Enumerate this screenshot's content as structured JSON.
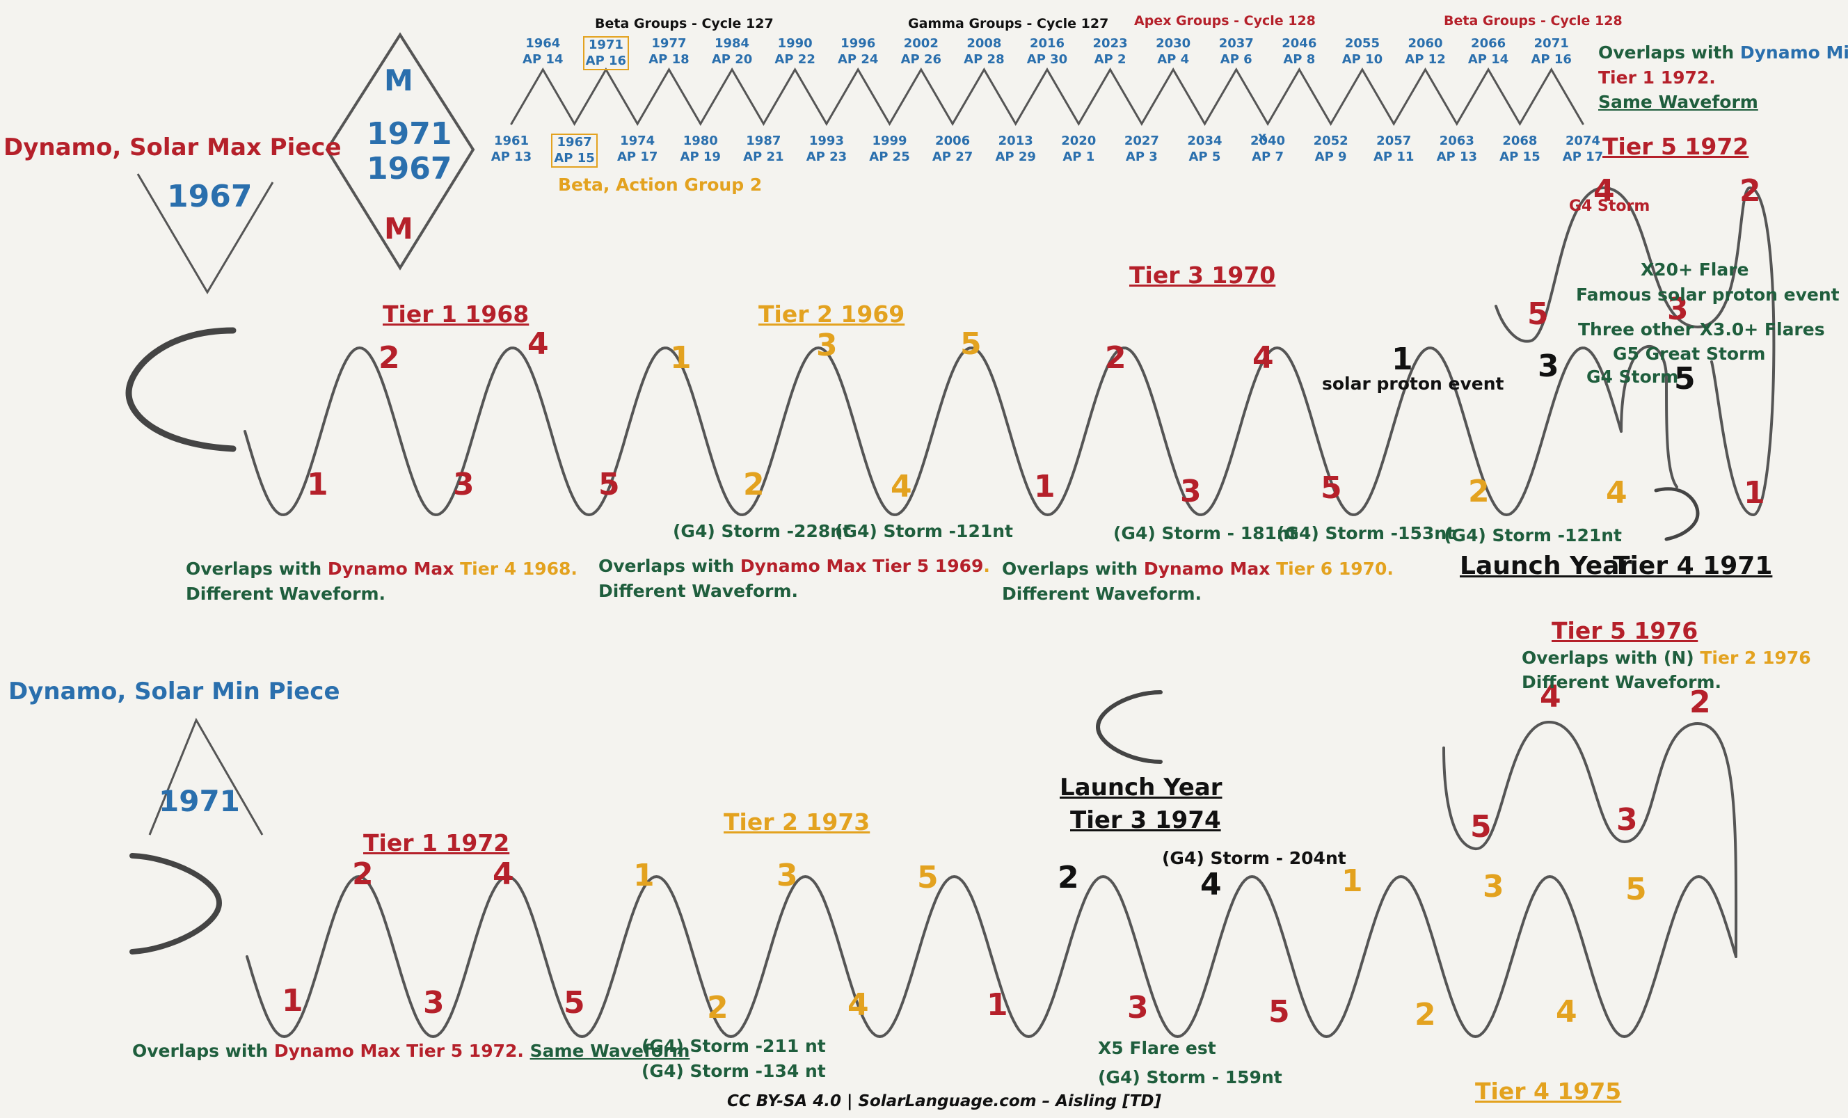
{
  "strip": {
    "groups": [
      {
        "label": "Beta Groups - Cycle 127",
        "color": "#111111"
      },
      {
        "label": "Gamma Groups - Cycle 127",
        "color": "#111111"
      },
      {
        "label": "Apex Groups - Cycle 128",
        "color": "#b5202a"
      },
      {
        "label": "Beta Groups - Cycle 128",
        "color": "#b5202a"
      }
    ],
    "peaks": [
      {
        "year": "1964",
        "ap": "AP 14"
      },
      {
        "year": "1971",
        "ap": "AP 16"
      },
      {
        "year": "1977",
        "ap": "AP 18"
      },
      {
        "year": "1984",
        "ap": "AP 20"
      },
      {
        "year": "1990",
        "ap": "AP 22"
      },
      {
        "year": "1996",
        "ap": "AP 24"
      },
      {
        "year": "2002",
        "ap": "AP 26"
      },
      {
        "year": "2008",
        "ap": "AP 28"
      },
      {
        "year": "2016",
        "ap": "AP 30"
      },
      {
        "year": "2023",
        "ap": "AP 2"
      },
      {
        "year": "2030",
        "ap": "AP 4"
      },
      {
        "year": "2037",
        "ap": "AP 6"
      },
      {
        "year": "2046",
        "ap": "AP 8"
      },
      {
        "year": "2055",
        "ap": "AP 10"
      },
      {
        "year": "2060",
        "ap": "AP 12"
      },
      {
        "year": "2066",
        "ap": "AP 14"
      },
      {
        "year": "2071",
        "ap": "AP 16"
      }
    ],
    "troughs": [
      {
        "year": "1961",
        "ap": "AP 13"
      },
      {
        "year": "1967",
        "ap": "AP 15"
      },
      {
        "year": "1974",
        "ap": "AP 17"
      },
      {
        "year": "1980",
        "ap": "AP 19"
      },
      {
        "year": "1987",
        "ap": "AP 21"
      },
      {
        "year": "1993",
        "ap": "AP 23"
      },
      {
        "year": "1999",
        "ap": "AP 25"
      },
      {
        "year": "2006",
        "ap": "AP 27"
      },
      {
        "year": "2013",
        "ap": "AP 29"
      },
      {
        "year": "2020",
        "ap": "AP 1"
      },
      {
        "year": "2027",
        "ap": "AP 3"
      },
      {
        "year": "2034",
        "ap": "AP 5"
      },
      {
        "year": "2040",
        "ap": "AP 7"
      },
      {
        "year": "2052",
        "ap": "AP 9"
      },
      {
        "year": "2057",
        "ap": "AP 11"
      },
      {
        "year": "2063",
        "ap": "AP 13"
      },
      {
        "year": "2068",
        "ap": "AP 15"
      },
      {
        "year": "2074",
        "ap": "AP 17"
      }
    ],
    "x_mark": "x",
    "beta_action": "Beta, Action Group 2",
    "overlap_min": {
      "pre": "Overlaps with ",
      "dynamo": "Dynamo Min",
      "tier": "Tier 1 1972.",
      "wave": "Same Waveform"
    }
  },
  "diamond": {
    "top": "M",
    "years": [
      "1971",
      "1967"
    ],
    "bottom": "M"
  },
  "max_piece": {
    "title": "Dynamo, Solar Max Piece",
    "v_year": "1967",
    "tiers": {
      "t1": "Tier 1 1968",
      "t2": "Tier 2 1969",
      "t3": "Tier 3 1970",
      "t4": "Tier 4 1971",
      "t5": "Tier 5 1972"
    },
    "launch": "Launch Year",
    "wave_numbers": [
      "1",
      "2",
      "3",
      "4",
      "5",
      "1",
      "2",
      "3",
      "4",
      "5",
      "1",
      "2",
      "3",
      "4",
      "5",
      "1",
      "2",
      "3",
      "4",
      "5"
    ],
    "loop_numbers": [
      "5",
      "4",
      "3",
      "2",
      "1"
    ],
    "storms": [
      "(G4) Storm -228nt",
      "(G4) Storm -121nt",
      "(G4) Storm - 181nt",
      "(G4) Storm -153nt",
      "(G4) Storm -121nt",
      "G4 Storm"
    ],
    "events": {
      "proton1": "solar proton event",
      "g4storm": "G4 Storm",
      "x20": "X20+ Flare",
      "famous": "Famous solar proton event",
      "x3": "Three other X3.0+ Flares",
      "g5": "G5 Great Storm"
    },
    "overlaps": [
      {
        "pre": "Overlaps with ",
        "dynamo": "Dynamo Max",
        "tier": " Tier 4 1968.",
        "wave": "Different Waveform."
      },
      {
        "pre": "Overlaps with ",
        "dynamo": "Dynamo Max Tier 5 1969",
        "tier": ".",
        "wave": "Different Waveform."
      },
      {
        "pre": "Overlaps with ",
        "dynamo": "Dynamo Max",
        "tier": " Tier 6 1970.",
        "wave": "Different Waveform."
      }
    ]
  },
  "min_piece": {
    "title": "Dynamo, Solar Min Piece",
    "v_year": "1971",
    "tiers": {
      "t1": "Tier 1 1972",
      "t2": "Tier 2 1973",
      "t3": "Tier 3 1974",
      "t4": "Tier 4 1975",
      "t5": "Tier 5 1976"
    },
    "launch": "Launch Year",
    "wave_numbers": [
      "1",
      "2",
      "3",
      "4",
      "5",
      "1",
      "2",
      "3",
      "4",
      "5",
      "1",
      "2",
      "3",
      "4",
      "5",
      "1",
      "2",
      "3",
      "4",
      "5"
    ],
    "loop_numbers": [
      "5",
      "4",
      "3",
      "2"
    ],
    "storms": [
      "(G4) Storm -211 nt",
      "(G4) Storm -134 nt",
      "(G4) Storm - 204nt",
      "(G4) Storm - 159nt"
    ],
    "x5": "X5 Flare est",
    "overlap1": {
      "pre": "Overlaps with ",
      "dynamo": "Dynamo Max Tier 5 1972.",
      "wave": "Same Waveform"
    },
    "overlap2": {
      "pre": "Overlaps with (N) ",
      "tier": "Tier 2 1976",
      "wave": "Different Waveform."
    }
  },
  "footer": "CC BY-SA 4.0 | SolarLanguage.com – Aisling [TD]",
  "colors": {
    "red": "#b5202a",
    "blue": "#2a6fad",
    "orange": "#e3a21f",
    "green": "#1f5e3d",
    "pencil": "#555555"
  }
}
